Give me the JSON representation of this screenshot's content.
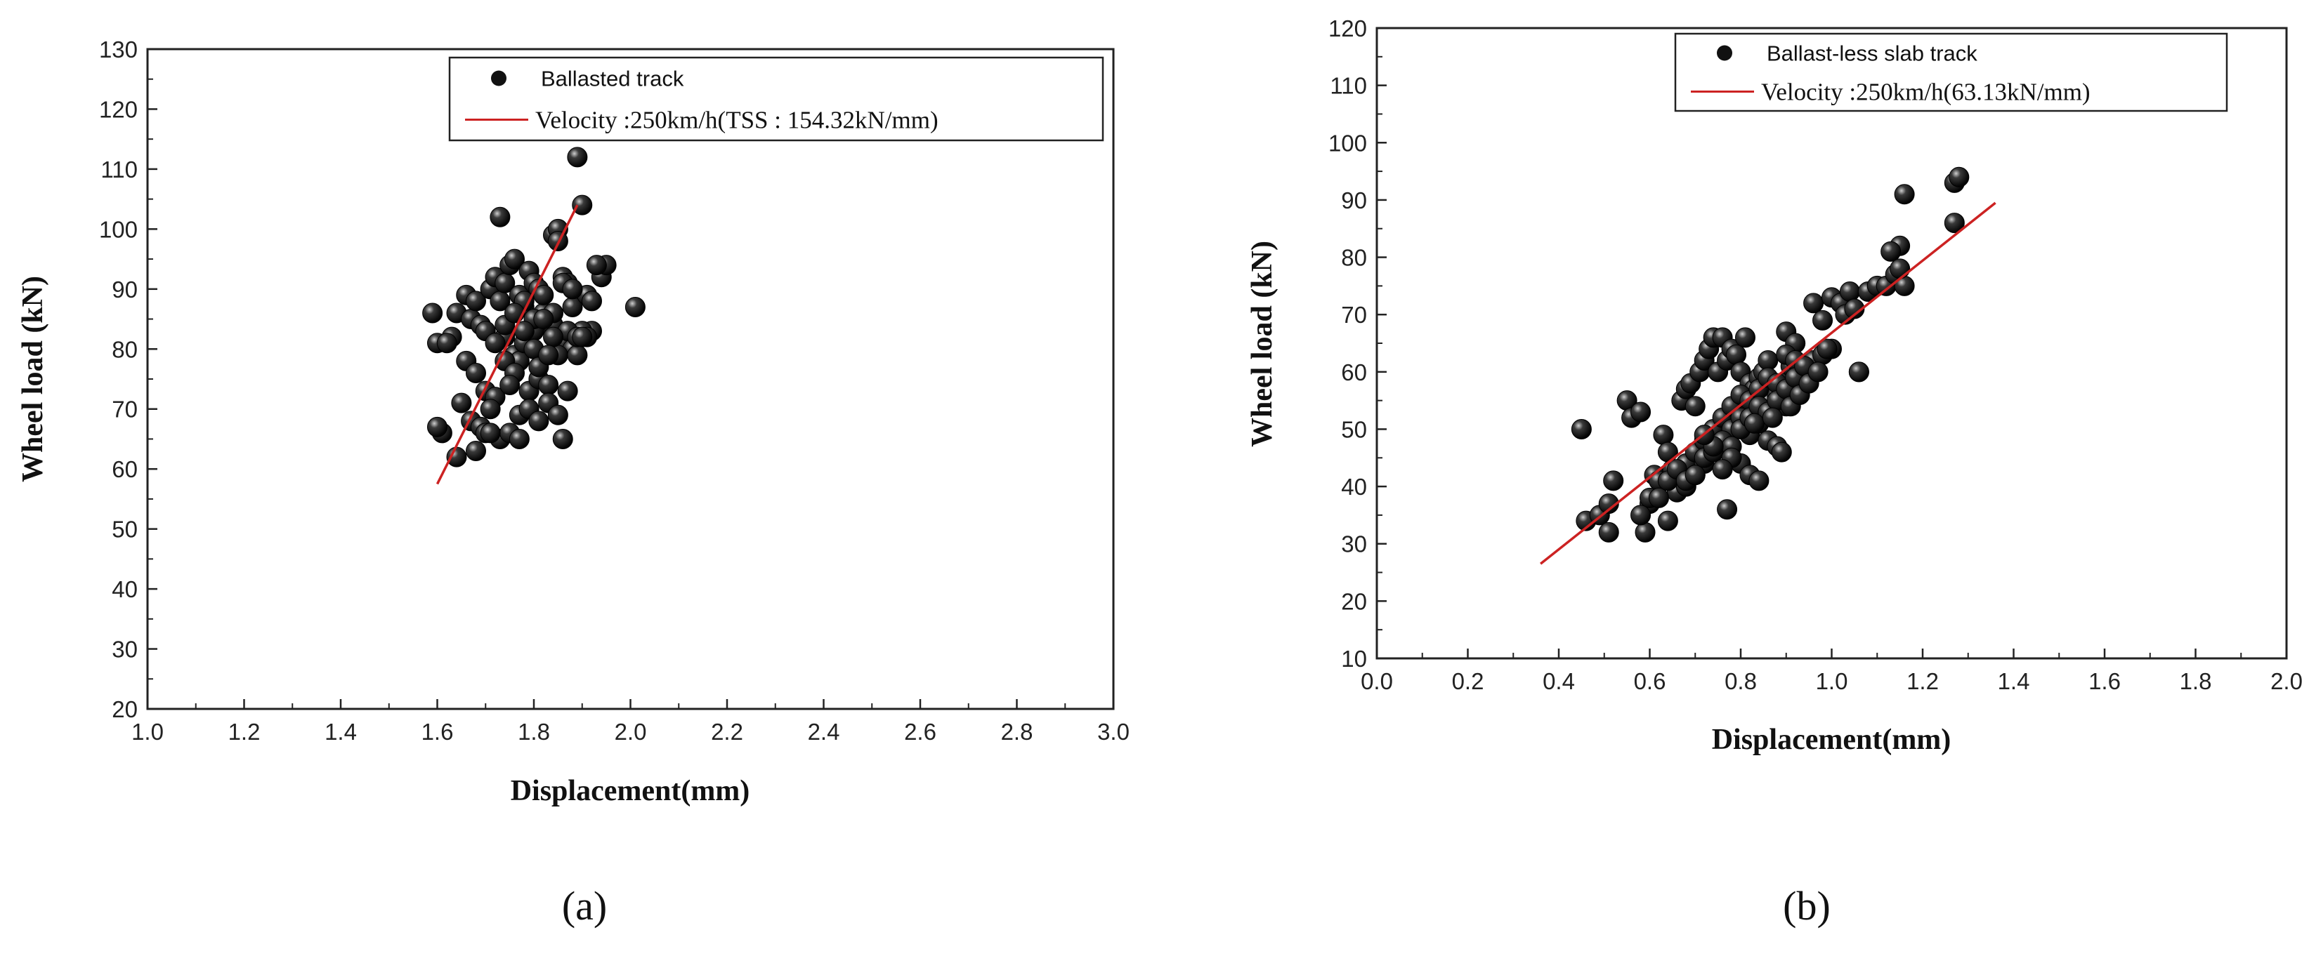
{
  "chart_data": [
    {
      "type": "scatter",
      "caption": "(a)",
      "xlabel": "Displacement(mm)",
      "ylabel": "Wheel load (kN)",
      "xlim": [
        1.0,
        3.0
      ],
      "ylim": [
        20,
        130
      ],
      "xticks": [
        1.0,
        1.2,
        1.4,
        1.6,
        1.8,
        2.0,
        2.2,
        2.4,
        2.6,
        2.8,
        3.0
      ],
      "yticks": [
        20,
        30,
        40,
        50,
        60,
        70,
        80,
        90,
        100,
        110,
        120,
        130
      ],
      "grid": false,
      "legend_position": "top-right",
      "colors": {
        "points": "#111111",
        "fit_line": "#cc2222"
      },
      "series": [
        {
          "name": "Ballasted track",
          "kind": "points",
          "x": [
            1.59,
            1.6,
            1.61,
            1.6,
            1.63,
            1.64,
            1.62,
            1.66,
            1.67,
            1.68,
            1.66,
            1.69,
            1.7,
            1.71,
            1.72,
            1.73,
            1.74,
            1.75,
            1.76,
            1.77,
            1.78,
            1.79,
            1.8,
            1.81,
            1.82,
            1.83,
            1.84,
            1.85,
            1.86,
            1.87,
            1.88,
            1.89,
            1.9,
            1.91,
            1.92,
            1.94,
            1.95,
            2.01,
            1.74,
            1.76,
            1.77,
            1.78,
            1.8,
            1.82,
            1.84,
            1.86,
            1.88,
            1.9,
            1.68,
            1.7,
            1.72,
            1.74,
            1.76,
            1.79,
            1.81,
            1.83,
            1.85,
            1.87,
            1.65,
            1.67,
            1.69,
            1.71,
            1.73,
            1.75,
            1.77,
            1.79,
            1.81,
            1.83,
            1.85,
            1.87,
            1.89,
            1.91,
            1.78,
            1.8,
            1.82,
            1.84,
            1.86,
            1.72,
            1.74,
            1.76,
            1.78,
            1.8,
            1.82,
            1.84,
            1.89,
            1.85,
            1.9,
            1.73,
            1.86,
            1.68,
            1.7,
            1.75,
            1.77,
            1.64,
            1.71,
            1.93,
            1.88,
            1.92,
            1.81,
            1.83
          ],
          "y": [
            86,
            81,
            66,
            67,
            82,
            86,
            81,
            89,
            85,
            88,
            78,
            84,
            83,
            90,
            92,
            88,
            91,
            94,
            95,
            89,
            87,
            93,
            91,
            90,
            85,
            84,
            99,
            100,
            92,
            91,
            87,
            112,
            104,
            89,
            83,
            92,
            94,
            87,
            82,
            79,
            78,
            81,
            83,
            86,
            84,
            81,
            80,
            83,
            76,
            73,
            72,
            78,
            76,
            73,
            75,
            74,
            79,
            83,
            71,
            68,
            67,
            70,
            65,
            66,
            69,
            70,
            68,
            71,
            69,
            73,
            79,
            82,
            88,
            85,
            89,
            86,
            91,
            81,
            84,
            86,
            83,
            80,
            85,
            82,
            82,
            98,
            82,
            102,
            65,
            63,
            66,
            74,
            65,
            62,
            66,
            94,
            90,
            88,
            77,
            79
          ]
        },
        {
          "name": "Velocity :250km/h(TSS : 154.32kN/mm)",
          "kind": "line",
          "x": [
            1.6,
            1.89
          ],
          "y": [
            57.5,
            104.0
          ]
        }
      ]
    },
    {
      "type": "scatter",
      "caption": "(b)",
      "xlabel": "Displacement(mm)",
      "ylabel": "Wheel load (kN)",
      "xlim": [
        0.0,
        2.0
      ],
      "ylim": [
        10,
        120
      ],
      "xticks": [
        0.0,
        0.2,
        0.4,
        0.6,
        0.8,
        1.0,
        1.2,
        1.4,
        1.6,
        1.8,
        2.0
      ],
      "yticks": [
        10,
        20,
        30,
        40,
        50,
        60,
        70,
        80,
        90,
        100,
        110,
        120
      ],
      "grid": false,
      "legend_position": "top-right",
      "colors": {
        "points": "#111111",
        "fit_line": "#cc2222"
      },
      "series": [
        {
          "name": "Ballast-less slab track",
          "kind": "points",
          "x": [
            0.45,
            0.46,
            0.49,
            0.51,
            0.52,
            0.51,
            0.55,
            0.56,
            0.58,
            0.59,
            0.6,
            0.61,
            0.62,
            0.63,
            0.64,
            0.65,
            0.66,
            0.67,
            0.68,
            0.69,
            0.7,
            0.71,
            0.72,
            0.73,
            0.74,
            0.75,
            0.76,
            0.77,
            0.78,
            0.79,
            0.8,
            0.81,
            0.82,
            0.83,
            0.84,
            0.85,
            0.86,
            0.87,
            0.88,
            0.89,
            0.9,
            0.91,
            0.92,
            0.94,
            0.96,
            0.98,
            1.0,
            1.02,
            1.04,
            1.06,
            1.08,
            1.1,
            1.12,
            1.14,
            1.15,
            1.16,
            1.27,
            1.27,
            1.28,
            1.16,
            1.06,
            0.77,
            0.66,
            0.6,
            0.58,
            0.64,
            0.7,
            0.72,
            0.74,
            0.76,
            0.78,
            0.8,
            0.82,
            0.84,
            0.86,
            0.88,
            0.9,
            0.68,
            0.7,
            0.72,
            0.74,
            0.76,
            0.78,
            0.8,
            0.82,
            0.84,
            0.86,
            0.88,
            0.66,
            0.68,
            0.7,
            0.72,
            0.74,
            0.76,
            0.78,
            0.8,
            0.82,
            0.84,
            0.86,
            0.88,
            0.9,
            0.92,
            0.94,
            0.96,
            0.98,
            1.0,
            0.62,
            0.64,
            0.66,
            0.68,
            0.7,
            0.72,
            0.74,
            0.76,
            0.78,
            0.8,
            0.82,
            0.84,
            0.86,
            0.88,
            0.9,
            0.92,
            0.94,
            0.8,
            0.82,
            0.84,
            0.78,
            0.76,
            0.74,
            0.72,
            0.83,
            0.87,
            0.89,
            0.91,
            0.93,
            0.95,
            0.97,
            0.99,
            1.03,
            1.05,
            1.13,
            1.15
          ],
          "y": [
            50,
            34,
            35,
            32,
            41,
            37,
            55,
            52,
            53,
            32,
            37,
            42,
            41,
            49,
            34,
            43,
            40,
            55,
            57,
            58,
            54,
            60,
            62,
            64,
            66,
            60,
            66,
            62,
            64,
            63,
            60,
            66,
            58,
            57,
            59,
            60,
            62,
            55,
            56,
            58,
            67,
            61,
            65,
            61,
            72,
            69,
            73,
            72,
            74,
            60,
            74,
            75,
            75,
            77,
            82,
            75,
            93,
            86,
            94,
            91,
            60,
            36,
            42,
            38,
            35,
            46,
            45,
            47,
            49,
            51,
            50,
            52,
            54,
            53,
            55,
            56,
            54,
            44,
            46,
            48,
            50,
            52,
            54,
            56,
            55,
            57,
            59,
            58,
            39,
            40,
            42,
            44,
            46,
            48,
            50,
            52,
            49,
            51,
            48,
            47,
            63,
            62,
            60,
            62,
            63,
            64,
            38,
            41,
            43,
            41,
            42,
            45,
            46,
            48,
            47,
            50,
            52,
            54,
            53,
            55,
            57,
            59,
            61,
            44,
            42,
            41,
            45,
            43,
            47,
            49,
            51,
            52,
            46,
            54,
            56,
            58,
            60,
            64,
            70,
            71,
            81,
            78
          ]
        },
        {
          "name": "Velocity :250km/h(63.13kN/mm)",
          "kind": "line",
          "x": [
            0.36,
            1.36
          ],
          "y": [
            26.5,
            89.5
          ]
        }
      ]
    }
  ]
}
